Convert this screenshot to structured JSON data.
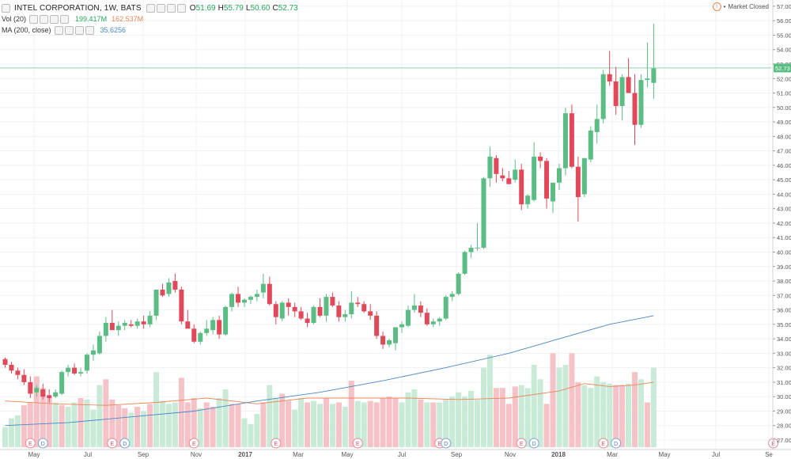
{
  "header": {
    "title": "INTEL CORPORATION, 1W, BATS",
    "ohlc": {
      "o_label": "O",
      "o": "51.69",
      "h_label": "H",
      "h": "55.79",
      "l_label": "L",
      "l": "50.60",
      "c_label": "C",
      "c": "52.73"
    },
    "vol_label": "Vol (20)",
    "vol_value": "199.417M",
    "vol_ma": "162.537M",
    "ma_label": "MA (200, close)",
    "ma_value": "35.6256",
    "market_status": "Market Closed",
    "last_price_tag": "52.73"
  },
  "colors": {
    "up": "#5bbd84",
    "down": "#e0495a",
    "vol_up": "#c8ead7",
    "vol_down": "#f5c2c7",
    "ma_line": "#4a86c5",
    "vol_ma_line": "#e8875a",
    "grid": "#eef1f4",
    "last_price": "#8fd3b0"
  },
  "chart_data": {
    "type": "candlestick",
    "y_axis_range": [
      26.5,
      57.5
    ],
    "y_ticks": [
      "27.00",
      "28.00",
      "29.00",
      "30.00",
      "31.00",
      "32.00",
      "33.00",
      "34.00",
      "35.00",
      "36.00",
      "37.00",
      "38.00",
      "39.00",
      "40.00",
      "41.00",
      "42.00",
      "43.00",
      "44.00",
      "45.00",
      "46.00",
      "47.00",
      "48.00",
      "49.00",
      "50.00",
      "51.00",
      "52.00",
      "53.00",
      "54.00",
      "55.00",
      "56.00",
      "57.00"
    ],
    "x_labels": [
      "May",
      "Jul",
      "Sep",
      "Nov",
      "2017",
      "Mar",
      "May",
      "Jul",
      "Sep",
      "Nov",
      "2018",
      "Mar",
      "May",
      "Jul",
      "Se"
    ],
    "candles": [
      [
        32.6,
        32.7,
        32.0,
        32.2
      ],
      [
        32.2,
        32.4,
        31.6,
        31.8
      ],
      [
        31.8,
        32.0,
        31.2,
        31.5
      ],
      [
        31.5,
        31.9,
        30.8,
        31.0
      ],
      [
        31.0,
        31.4,
        29.9,
        30.2
      ],
      [
        30.3,
        30.8,
        30.0,
        30.6
      ],
      [
        30.5,
        30.9,
        29.8,
        30.0
      ],
      [
        30.1,
        30.5,
        29.6,
        29.9
      ],
      [
        30.0,
        30.5,
        29.9,
        30.3
      ],
      [
        30.2,
        31.8,
        30.1,
        31.7
      ],
      [
        31.7,
        32.2,
        31.4,
        32.0
      ],
      [
        32.0,
        32.3,
        31.5,
        31.6
      ],
      [
        31.6,
        32.0,
        31.4,
        31.7
      ],
      [
        31.8,
        33.0,
        31.6,
        32.9
      ],
      [
        32.9,
        33.6,
        32.5,
        33.2
      ],
      [
        33.0,
        34.5,
        32.9,
        34.2
      ],
      [
        34.2,
        35.5,
        33.8,
        35.1
      ],
      [
        35.1,
        36.0,
        34.7,
        34.6
      ],
      [
        34.6,
        35.2,
        34.2,
        34.9
      ],
      [
        34.9,
        35.3,
        34.6,
        35.1
      ],
      [
        35.0,
        35.3,
        34.8,
        34.9
      ],
      [
        34.9,
        35.4,
        34.7,
        35.2
      ],
      [
        35.2,
        35.6,
        34.7,
        35.0
      ],
      [
        35.0,
        35.9,
        34.8,
        35.6
      ],
      [
        35.6,
        37.3,
        35.3,
        37.4
      ],
      [
        37.4,
        37.8,
        36.9,
        37.0
      ],
      [
        37.1,
        38.2,
        36.9,
        37.9
      ],
      [
        38.0,
        38.5,
        37.2,
        37.4
      ],
      [
        37.4,
        37.6,
        35.0,
        35.2
      ],
      [
        35.2,
        36.0,
        34.8,
        34.7
      ],
      [
        34.7,
        35.0,
        33.7,
        33.8
      ],
      [
        33.8,
        34.5,
        33.6,
        34.4
      ],
      [
        34.4,
        35.3,
        34.2,
        34.7
      ],
      [
        34.6,
        35.5,
        34.3,
        35.3
      ],
      [
        35.3,
        35.6,
        34.0,
        34.3
      ],
      [
        34.3,
        36.3,
        34.2,
        36.2
      ],
      [
        36.2,
        37.2,
        35.9,
        37.1
      ],
      [
        37.1,
        37.6,
        36.2,
        36.5
      ],
      [
        36.5,
        36.8,
        36.2,
        36.7
      ],
      [
        36.7,
        37.0,
        36.4,
        36.9
      ],
      [
        36.9,
        37.4,
        36.6,
        37.1
      ],
      [
        37.2,
        38.5,
        36.8,
        37.8
      ],
      [
        37.8,
        38.3,
        36.3,
        36.4
      ],
      [
        36.4,
        36.6,
        35.0,
        35.5
      ],
      [
        35.4,
        36.6,
        35.2,
        36.5
      ],
      [
        36.5,
        36.8,
        35.6,
        36.2
      ],
      [
        36.2,
        36.5,
        35.5,
        35.9
      ],
      [
        35.9,
        36.2,
        35.3,
        35.4
      ],
      [
        35.4,
        35.8,
        34.8,
        35.1
      ],
      [
        35.1,
        36.3,
        35.0,
        36.2
      ],
      [
        36.2,
        36.8,
        35.5,
        35.6
      ],
      [
        35.6,
        37.1,
        35.2,
        36.9
      ],
      [
        36.9,
        37.2,
        36.2,
        36.3
      ],
      [
        36.3,
        36.6,
        35.2,
        35.5
      ],
      [
        35.5,
        36.0,
        35.2,
        35.7
      ],
      [
        35.7,
        37.3,
        35.4,
        36.5
      ],
      [
        36.5,
        36.9,
        36.2,
        36.4
      ],
      [
        36.4,
        36.6,
        35.8,
        35.9
      ],
      [
        35.9,
        36.4,
        35.3,
        35.6
      ],
      [
        35.6,
        35.9,
        34.0,
        34.2
      ],
      [
        34.2,
        34.5,
        33.3,
        33.6
      ],
      [
        33.6,
        34.0,
        33.4,
        33.9
      ],
      [
        33.7,
        34.8,
        33.2,
        34.8
      ],
      [
        34.8,
        35.2,
        34.4,
        35.0
      ],
      [
        34.9,
        36.3,
        34.8,
        36.0
      ],
      [
        36.0,
        37.1,
        35.8,
        36.3
      ],
      [
        36.3,
        36.6,
        35.5,
        35.8
      ],
      [
        35.8,
        36.1,
        34.9,
        35.0
      ],
      [
        35.0,
        35.4,
        34.8,
        35.2
      ],
      [
        35.2,
        35.5,
        34.9,
        35.4
      ],
      [
        35.4,
        37.0,
        35.3,
        36.9
      ],
      [
        36.9,
        37.3,
        36.6,
        37.1
      ],
      [
        37.1,
        38.6,
        37.0,
        38.5
      ],
      [
        38.5,
        40.1,
        38.4,
        40.0
      ],
      [
        40.0,
        40.5,
        39.6,
        40.3
      ],
      [
        40.3,
        42.0,
        40.1,
        40.3
      ],
      [
        40.3,
        45.2,
        40.2,
        45.1
      ],
      [
        45.1,
        47.3,
        44.5,
        46.6
      ],
      [
        46.5,
        46.7,
        44.8,
        45.4
      ],
      [
        45.3,
        45.8,
        44.9,
        45.1
      ],
      [
        45.1,
        45.6,
        44.7,
        44.7
      ],
      [
        45.0,
        46.4,
        44.8,
        45.7
      ],
      [
        45.7,
        46.1,
        42.9,
        43.3
      ],
      [
        43.3,
        44.0,
        43.0,
        43.9
      ],
      [
        43.6,
        47.6,
        43.5,
        46.6
      ],
      [
        46.6,
        46.9,
        45.8,
        46.3
      ],
      [
        46.3,
        46.5,
        43.0,
        43.7
      ],
      [
        43.5,
        44.8,
        42.7,
        44.8
      ],
      [
        44.8,
        46.1,
        44.3,
        45.8
      ],
      [
        45.8,
        50.0,
        45.3,
        49.6
      ],
      [
        49.6,
        50.2,
        45.8,
        45.9
      ],
      [
        45.9,
        46.6,
        42.1,
        43.8
      ],
      [
        44.0,
        46.5,
        43.8,
        46.5
      ],
      [
        46.4,
        48.7,
        46.2,
        48.4
      ],
      [
        48.3,
        50.2,
        47.5,
        49.2
      ],
      [
        49.2,
        52.6,
        48.9,
        52.3
      ],
      [
        52.3,
        53.9,
        51.5,
        51.8
      ],
      [
        51.8,
        52.8,
        49.5,
        50.1
      ],
      [
        50.1,
        52.3,
        49.1,
        52.1
      ],
      [
        52.1,
        53.4,
        51.2,
        51.0
      ],
      [
        51.0,
        52.3,
        47.4,
        48.8
      ],
      [
        48.8,
        52.3,
        48.6,
        51.9
      ],
      [
        51.9,
        54.5,
        51.4,
        52.0
      ],
      [
        51.7,
        55.8,
        50.6,
        52.7
      ]
    ],
    "volume": [
      [
        27.9,
        0
      ],
      [
        28.5,
        0
      ],
      [
        28.7,
        0
      ],
      [
        29.4,
        1
      ],
      [
        29.6,
        1
      ],
      [
        31.4,
        1
      ],
      [
        30.6,
        1
      ],
      [
        29.9,
        1
      ],
      [
        29.6,
        0
      ],
      [
        29.4,
        1
      ],
      [
        29.3,
        0
      ],
      [
        29.6,
        0
      ],
      [
        29.9,
        1
      ],
      [
        29.8,
        0
      ],
      [
        29.1,
        0
      ],
      [
        30.8,
        0
      ],
      [
        31.2,
        1
      ],
      [
        29.8,
        1
      ],
      [
        29.4,
        1
      ],
      [
        29.2,
        1
      ],
      [
        28.9,
        0
      ],
      [
        29.3,
        1
      ],
      [
        29.0,
        0
      ],
      [
        29.5,
        1
      ],
      [
        31.7,
        0
      ],
      [
        29.7,
        0
      ],
      [
        29.5,
        0
      ],
      [
        29.6,
        0
      ],
      [
        31.3,
        1
      ],
      [
        29.6,
        1
      ],
      [
        29.9,
        1
      ],
      [
        29.2,
        0
      ],
      [
        29.6,
        1
      ],
      [
        29.3,
        1
      ],
      [
        29.9,
        0
      ],
      [
        30.5,
        0
      ],
      [
        29.5,
        1
      ],
      [
        29.5,
        1
      ],
      [
        28.5,
        0
      ],
      [
        28.1,
        0
      ],
      [
        28.8,
        0
      ],
      [
        29.6,
        1
      ],
      [
        30.8,
        0
      ],
      [
        29.9,
        0
      ],
      [
        30.2,
        1
      ],
      [
        29.7,
        1
      ],
      [
        29.1,
        0
      ],
      [
        29.9,
        0
      ],
      [
        29.6,
        1
      ],
      [
        29.7,
        0
      ],
      [
        29.5,
        0
      ],
      [
        29.9,
        1
      ],
      [
        29.5,
        0
      ],
      [
        29.6,
        1
      ],
      [
        29.3,
        0
      ],
      [
        31.1,
        1
      ],
      [
        29.7,
        0
      ],
      [
        29.6,
        0
      ],
      [
        29.7,
        1
      ],
      [
        29.6,
        1
      ],
      [
        29.9,
        1
      ],
      [
        30.0,
        1
      ],
      [
        29.9,
        1
      ],
      [
        29.6,
        0
      ],
      [
        30.3,
        0
      ],
      [
        30.5,
        0
      ],
      [
        29.8,
        1
      ],
      [
        29.6,
        0
      ],
      [
        29.6,
        1
      ],
      [
        29.6,
        0
      ],
      [
        29.8,
        0
      ],
      [
        30.0,
        0
      ],
      [
        30.3,
        0
      ],
      [
        30.0,
        0
      ],
      [
        30.4,
        0
      ],
      [
        29.8,
        0
      ],
      [
        32.0,
        0
      ],
      [
        32.9,
        0
      ],
      [
        30.6,
        1
      ],
      [
        30.6,
        1
      ],
      [
        29.5,
        1
      ],
      [
        30.7,
        1
      ],
      [
        30.8,
        0
      ],
      [
        30.6,
        0
      ],
      [
        32.2,
        0
      ],
      [
        31.2,
        0
      ],
      [
        29.5,
        1
      ],
      [
        33.0,
        1
      ],
      [
        32.0,
        0
      ],
      [
        32.2,
        0
      ],
      [
        33.0,
        1
      ],
      [
        31.0,
        1
      ],
      [
        30.8,
        0
      ],
      [
        30.6,
        0
      ],
      [
        31.4,
        0
      ],
      [
        31.0,
        0
      ],
      [
        30.9,
        0
      ],
      [
        30.8,
        1
      ],
      [
        30.8,
        1
      ],
      [
        30.9,
        0
      ],
      [
        31.7,
        1
      ],
      [
        31.2,
        0
      ],
      [
        29.6,
        1
      ],
      [
        32.0,
        0
      ]
    ],
    "volume_axis_bottom": 26.5,
    "ma200": [
      [
        0,
        28.0
      ],
      [
        10,
        28.2
      ],
      [
        20,
        28.6
      ],
      [
        30,
        29.0
      ],
      [
        40,
        29.7
      ],
      [
        50,
        30.3
      ],
      [
        60,
        31.1
      ],
      [
        70,
        32.0
      ],
      [
        80,
        33.0
      ],
      [
        88,
        34.0
      ],
      [
        96,
        35.0
      ],
      [
        103,
        35.6
      ]
    ],
    "vol_ma": [
      [
        0,
        29.7
      ],
      [
        8,
        29.5
      ],
      [
        16,
        29.4
      ],
      [
        24,
        29.6
      ],
      [
        32,
        29.9
      ],
      [
        40,
        29.5
      ],
      [
        48,
        29.9
      ],
      [
        56,
        29.9
      ],
      [
        64,
        29.9
      ],
      [
        72,
        29.8
      ],
      [
        80,
        29.9
      ],
      [
        88,
        30.4
      ],
      [
        92,
        30.9
      ],
      [
        96,
        30.7
      ],
      [
        100,
        30.8
      ],
      [
        103,
        31.0
      ]
    ],
    "events": [
      {
        "label": "E",
        "idx": 4
      },
      {
        "label": "D",
        "idx": 6
      },
      {
        "label": "E",
        "idx": 17
      },
      {
        "label": "D",
        "idx": 19
      },
      {
        "label": "E",
        "idx": 30
      },
      {
        "label": "E",
        "idx": 43
      },
      {
        "label": "E",
        "idx": 56
      },
      {
        "label": "E",
        "idx": 69
      },
      {
        "label": "D",
        "idx": 70
      },
      {
        "label": "E",
        "idx": 82
      },
      {
        "label": "D",
        "idx": 84
      },
      {
        "label": "E",
        "idx": 95
      },
      {
        "label": "D",
        "idx": 97
      },
      {
        "label": "E",
        "idx": 122
      }
    ]
  }
}
